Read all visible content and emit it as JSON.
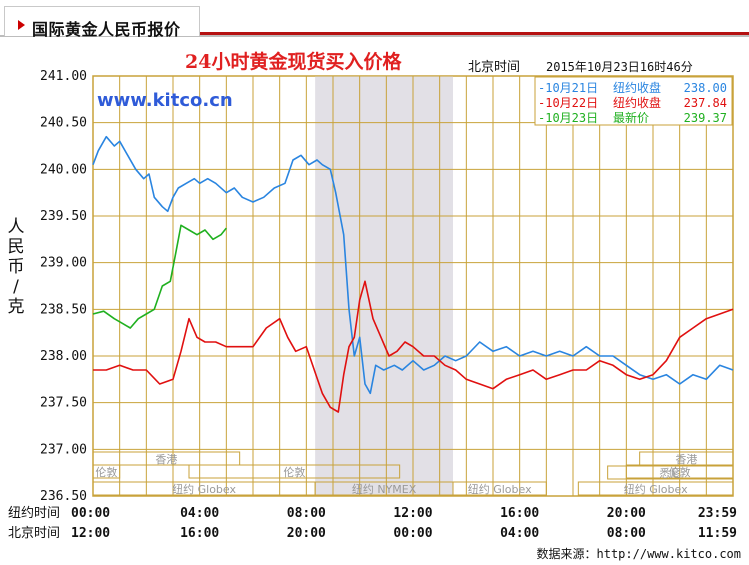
{
  "header": {
    "tab_title": "国际黄金人民币报价"
  },
  "credit": "数据来源：http://www.kitco.com",
  "colors": {
    "frame": "#c8a23a",
    "grid": "#c8a23a",
    "plot_bg": "#ffffff",
    "shade": "#e2e0e6",
    "title": "#e02020",
    "watermark": "#2f5bd8",
    "series_oct21": "#2a85e0",
    "series_oct22": "#e01010",
    "series_oct23": "#20b020",
    "accent_red": "#b51111"
  },
  "chart_data": {
    "type": "line",
    "title": "24小时黄金现货买入价格",
    "subtitle_label": "北京时间",
    "subtitle_date": "2015年10月23日16时46分",
    "watermark": "www.kitco.cn",
    "ylabel": "人民币/克",
    "ylim": [
      236.5,
      241.0
    ],
    "y_ticks": [
      "241.00",
      "240.50",
      "240.00",
      "239.50",
      "239.00",
      "238.50",
      "238.00",
      "237.50",
      "237.00",
      "236.50"
    ],
    "xlim": [
      0,
      24
    ],
    "x_rows": [
      {
        "label": "纽约时间",
        "ticks": [
          "00:00",
          "04:00",
          "08:00",
          "12:00",
          "16:00",
          "20:00",
          "23:59"
        ]
      },
      {
        "label": "北京时间",
        "ticks": [
          "12:00",
          "16:00",
          "20:00",
          "00:00",
          "04:00",
          "08:00",
          "11:59"
        ]
      }
    ],
    "grid": true,
    "shaded_region_hours": [
      8.33,
      13.5
    ],
    "legend_position": "top-right",
    "legend": [
      {
        "date": "10月21日",
        "label": "纽约收盘",
        "value": "238.00"
      },
      {
        "date": "10月22日",
        "label": "纽约收盘",
        "value": "237.84"
      },
      {
        "date": "10月23日",
        "label": "最新价",
        "value": "239.37"
      }
    ],
    "sessions": [
      {
        "name": "香港",
        "row": 1,
        "start": 0,
        "end": 5.5
      },
      {
        "name": "香港",
        "row": 1,
        "start": 20.5,
        "end": 24
      },
      {
        "name": "伦敦",
        "row": 2,
        "start": 0,
        "end": 1.0
      },
      {
        "name": "伦敦",
        "row": 2,
        "start": 3.6,
        "end": 11.5
      },
      {
        "name": "伦敦",
        "row": 2,
        "start": 20.0,
        "end": 24
      },
      {
        "name": "悉尼",
        "row": 3,
        "start": 19.3,
        "end": 24
      },
      {
        "name": "纽约 Globex",
        "row": 4,
        "start": 0,
        "end": 8.33
      },
      {
        "name": "纽约 NYMEX",
        "row": 4,
        "start": 8.33,
        "end": 13.5
      },
      {
        "name": "纽约 Globex",
        "row": 4,
        "start": 13.5,
        "end": 17.0
      },
      {
        "name": "纽约 Globex",
        "row": 4,
        "start": 18.2,
        "end": 24
      }
    ],
    "series": [
      {
        "name": "10月21日",
        "x": [
          0,
          0.2,
          0.5,
          0.8,
          1.0,
          1.3,
          1.6,
          1.9,
          2.1,
          2.3,
          2.6,
          2.8,
          3.0,
          3.2,
          3.5,
          3.8,
          4.0,
          4.3,
          4.6,
          5.0,
          5.3,
          5.6,
          6.0,
          6.4,
          6.8,
          7.2,
          7.5,
          7.8,
          8.1,
          8.4,
          8.6,
          8.9,
          9.1,
          9.4,
          9.6,
          9.8,
          10.0,
          10.2,
          10.4,
          10.6,
          10.9,
          11.3,
          11.6,
          12.0,
          12.4,
          12.8,
          13.2,
          13.6,
          14.0,
          14.5,
          15.0,
          15.5,
          16.0,
          16.5,
          17.0,
          17.5,
          18.0,
          18.5,
          19.0,
          19.5,
          20.0,
          20.5,
          21.0,
          21.5,
          22.0,
          22.5,
          23.0,
          23.5,
          24.0
        ],
        "values": [
          240.05,
          240.2,
          240.35,
          240.25,
          240.3,
          240.15,
          240.0,
          239.9,
          239.95,
          239.7,
          239.6,
          239.55,
          239.7,
          239.8,
          239.85,
          239.9,
          239.85,
          239.9,
          239.85,
          239.75,
          239.8,
          239.7,
          239.65,
          239.7,
          239.8,
          239.85,
          240.1,
          240.15,
          240.05,
          240.1,
          240.05,
          240.0,
          239.75,
          239.3,
          238.5,
          238.0,
          238.2,
          237.7,
          237.6,
          237.9,
          237.85,
          237.9,
          237.85,
          237.95,
          237.85,
          237.9,
          238.0,
          237.95,
          238.0,
          238.15,
          238.05,
          238.1,
          238.0,
          238.05,
          238.0,
          238.05,
          238.0,
          238.1,
          238.0,
          238.0,
          237.9,
          237.8,
          237.75,
          237.8,
          237.7,
          237.8,
          237.75,
          237.9,
          237.85
        ]
      },
      {
        "name": "10月22日",
        "x": [
          0,
          0.5,
          1.0,
          1.5,
          2.0,
          2.5,
          3.0,
          3.3,
          3.6,
          3.9,
          4.2,
          4.6,
          5.0,
          5.5,
          6.0,
          6.5,
          7.0,
          7.3,
          7.6,
          8.0,
          8.3,
          8.6,
          8.9,
          9.2,
          9.4,
          9.6,
          9.8,
          10.0,
          10.2,
          10.5,
          10.8,
          11.1,
          11.4,
          11.7,
          12.0,
          12.4,
          12.8,
          13.2,
          13.6,
          14.0,
          14.5,
          15.0,
          15.5,
          16.0,
          16.5,
          17.0,
          17.5,
          18.0,
          18.5,
          19.0,
          19.5,
          20.0,
          20.5,
          21.0,
          21.5,
          22.0,
          22.5,
          23.0,
          23.5,
          24.0
        ],
        "values": [
          237.85,
          237.85,
          237.9,
          237.85,
          237.85,
          237.7,
          237.75,
          238.05,
          238.4,
          238.2,
          238.15,
          238.15,
          238.1,
          238.1,
          238.1,
          238.3,
          238.4,
          238.2,
          238.05,
          238.1,
          237.85,
          237.6,
          237.45,
          237.4,
          237.8,
          238.1,
          238.2,
          238.6,
          238.8,
          238.4,
          238.2,
          238.0,
          238.05,
          238.15,
          238.1,
          238.0,
          238.0,
          237.9,
          237.85,
          237.75,
          237.7,
          237.65,
          237.75,
          237.8,
          237.85,
          237.75,
          237.8,
          237.85,
          237.85,
          237.95,
          237.9,
          237.8,
          237.75,
          237.8,
          237.95,
          238.2,
          238.3,
          238.4,
          238.45,
          238.5
        ]
      },
      {
        "name": "10月23日",
        "x": [
          0,
          0.4,
          0.8,
          1.1,
          1.4,
          1.7,
          2.0,
          2.3,
          2.6,
          2.9,
          3.1,
          3.3,
          3.6,
          3.9,
          4.2,
          4.5,
          4.8,
          5.0
        ],
        "values": [
          238.45,
          238.48,
          238.4,
          238.35,
          238.3,
          238.4,
          238.45,
          238.5,
          238.75,
          238.8,
          239.1,
          239.4,
          239.35,
          239.3,
          239.35,
          239.25,
          239.3,
          239.37
        ]
      }
    ]
  }
}
